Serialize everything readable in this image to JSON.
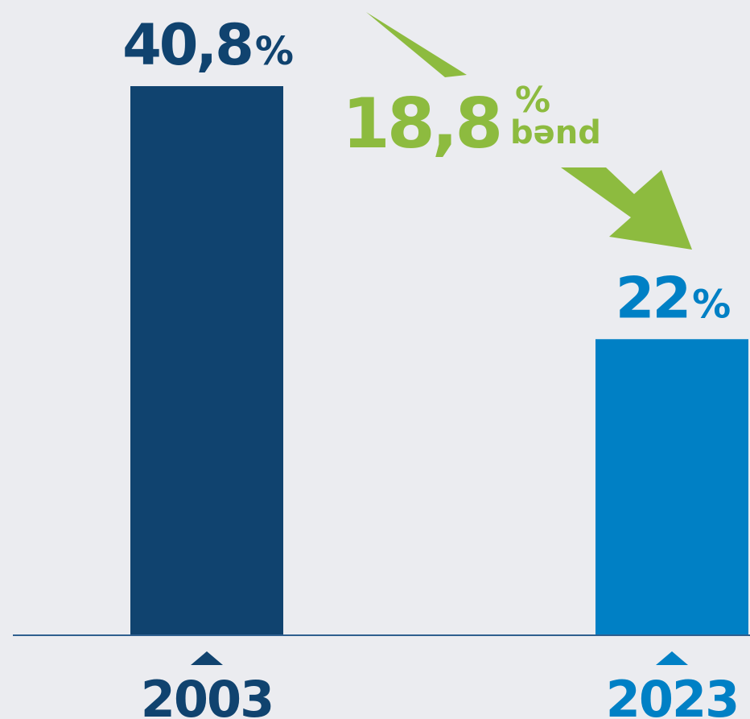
{
  "chart_data": {
    "type": "bar",
    "categories": [
      "2003",
      "2023"
    ],
    "values": [
      40.8,
      22
    ],
    "value_labels": [
      "40,8",
      "22"
    ],
    "value_unit": "%",
    "ylim": [
      0,
      45
    ],
    "annotation": {
      "number": "18,8",
      "unit": "%",
      "word": "bənd"
    },
    "colors": {
      "bar_2003": "#10436f",
      "bar_2023": "#0080c5",
      "annotation": "#8dbb3f",
      "axis": "#2f5f8f",
      "background": "#ebecf0"
    },
    "grid": false,
    "legend": "none"
  }
}
